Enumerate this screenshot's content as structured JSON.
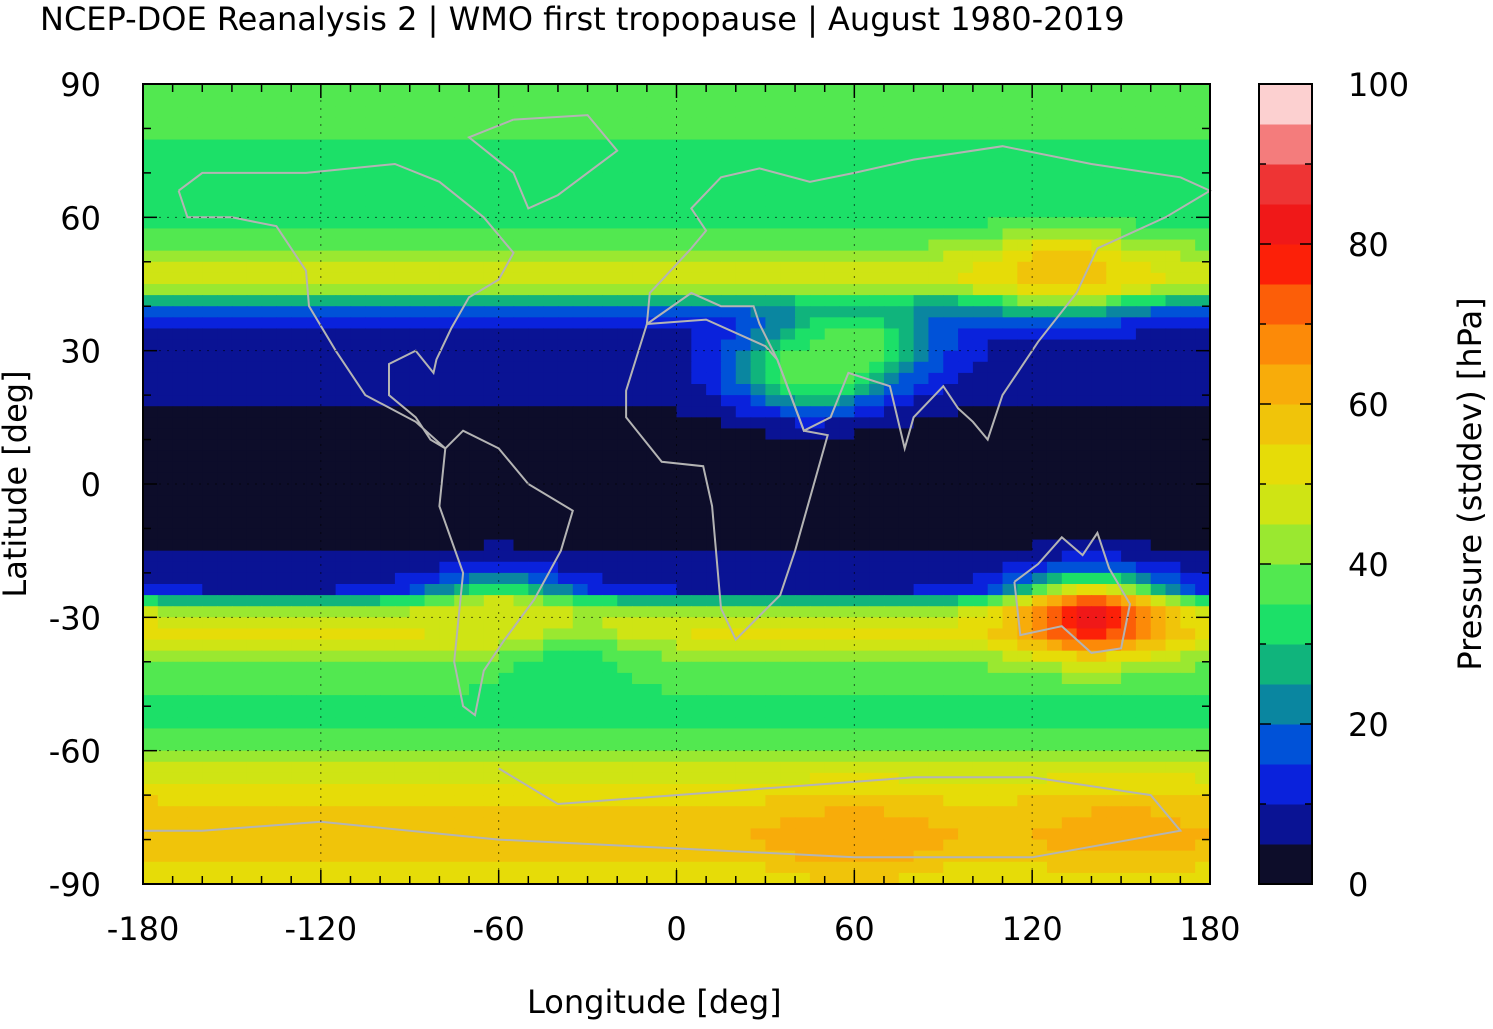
{
  "chart_data": {
    "type": "heatmap",
    "title": "NCEP-DOE Reanalysis 2 | WMO first tropopause | August 1980-2019",
    "xlabel": "Longitude [deg]",
    "ylabel": "Latitude [deg]",
    "colorbar_label": "Pressure (stddev) [hPa]",
    "xlim": [
      -180,
      180
    ],
    "ylim": [
      -90,
      90
    ],
    "xticks": [
      "-180",
      "-120",
      "-60",
      "0",
      "60",
      "120",
      "180"
    ],
    "yticks": [
      "90",
      "60",
      "30",
      "0",
      "-30",
      "-60",
      "-90"
    ],
    "colorbar_range": [
      0,
      100
    ],
    "colorbar_ticks": [
      "100",
      "80",
      "60",
      "40",
      "20",
      "0"
    ],
    "colorbar_step": 5,
    "colormap": [
      "#0d0d2a",
      "#0a1394",
      "#0a22dc",
      "#0052d8",
      "#0a86a0",
      "#10b47c",
      "#1ce068",
      "#52e850",
      "#9ae830",
      "#cfe414",
      "#e6dc08",
      "#f0c40a",
      "#f8ac0a",
      "#fc8a08",
      "#fc5e08",
      "#fc2008",
      "#f01818",
      "#ee3434",
      "#f47c7c",
      "#fcd0d0"
    ],
    "grid": true,
    "latitude_profile": [
      {
        "lat": 85,
        "value": 38
      },
      {
        "lat": 75,
        "value": 34
      },
      {
        "lat": 65,
        "value": 31
      },
      {
        "lat": 57,
        "value": 34
      },
      {
        "lat": 50,
        "value": 46
      },
      {
        "lat": 45,
        "value": 50
      },
      {
        "lat": 40,
        "value": 20
      },
      {
        "lat": 35,
        "value": 9
      },
      {
        "lat": 28,
        "value": 8
      },
      {
        "lat": 20,
        "value": 6
      },
      {
        "lat": 12,
        "value": 3
      },
      {
        "lat": 0,
        "value": 2
      },
      {
        "lat": -12,
        "value": 3
      },
      {
        "lat": -18,
        "value": 6
      },
      {
        "lat": -24,
        "value": 10
      },
      {
        "lat": -28,
        "value": 42
      },
      {
        "lat": -33,
        "value": 52
      },
      {
        "lat": -40,
        "value": 40
      },
      {
        "lat": -50,
        "value": 33
      },
      {
        "lat": -58,
        "value": 36
      },
      {
        "lat": -65,
        "value": 48
      },
      {
        "lat": -72,
        "value": 55
      },
      {
        "lat": -80,
        "value": 60
      },
      {
        "lat": -88,
        "value": 52
      }
    ],
    "anomalies": [
      {
        "lon": 140,
        "lat": -30,
        "value": 82
      },
      {
        "lon": 150,
        "lat": -78,
        "value": 62
      },
      {
        "lon": 60,
        "lat": -80,
        "value": 64
      },
      {
        "lon": 130,
        "lat": 48,
        "value": 58
      },
      {
        "lon": 45,
        "lat": 25,
        "value": 40
      },
      {
        "lon": 60,
        "lat": 32,
        "value": 40
      },
      {
        "lon": -40,
        "lat": -40,
        "value": 30
      },
      {
        "lon": -60,
        "lat": -30,
        "value": 50
      }
    ]
  }
}
